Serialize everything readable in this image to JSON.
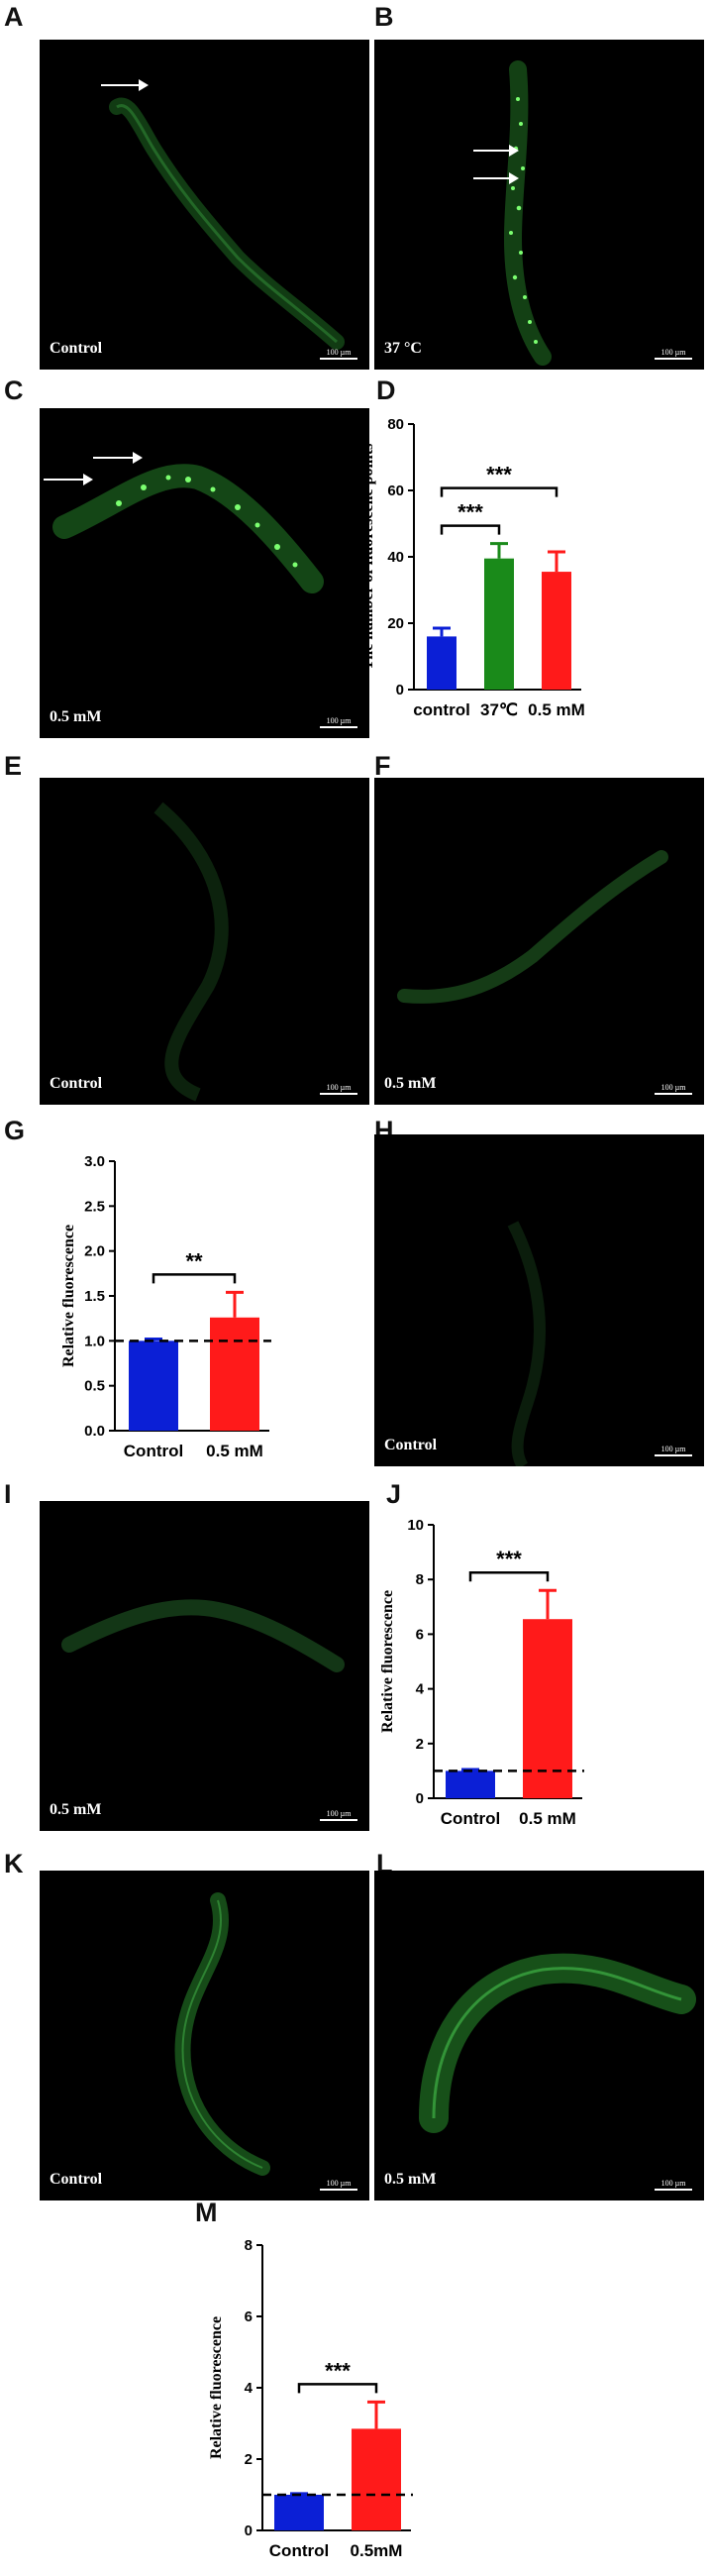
{
  "panels": [
    {
      "id": "A",
      "label": "A",
      "condition": "Control",
      "scale": "100 µm"
    },
    {
      "id": "B",
      "label": "B",
      "condition": "37 °C",
      "scale": "100 µm"
    },
    {
      "id": "C",
      "label": "C",
      "condition": "0.5 mM",
      "scale": "100 µm"
    },
    {
      "id": "E",
      "label": "E",
      "condition": "Control",
      "scale": "100 µm"
    },
    {
      "id": "F",
      "label": "F",
      "condition": "0.5 mM",
      "scale": "100 µm"
    },
    {
      "id": "H",
      "label": "H",
      "condition": "Control",
      "scale": "100 µm"
    },
    {
      "id": "I",
      "label": "I",
      "condition": "0.5 mM",
      "scale": "100 µm"
    },
    {
      "id": "K",
      "label": "K",
      "condition": "Control",
      "scale": "100 µm"
    },
    {
      "id": "L",
      "label": "L",
      "condition": "0.5 mM",
      "scale": "100 µm"
    }
  ],
  "colors": {
    "blue": "#0b1fd6",
    "green": "#1a8a1a",
    "red": "#ff1a1a",
    "fluor": "#39d64a"
  },
  "chart_data": [
    {
      "id": "D",
      "label": "D",
      "type": "bar",
      "ylabel": "The number of fluorescene points",
      "categories": [
        "control",
        "37℃",
        "0.5 mM"
      ],
      "values": [
        16,
        39.5,
        35.5
      ],
      "errors": [
        2.5,
        4.5,
        6
      ],
      "colors": [
        "#0b1fd6",
        "#1a8a1a",
        "#ff1a1a"
      ],
      "ylim": [
        0,
        80
      ],
      "yticks": [
        0,
        20,
        40,
        60,
        80
      ],
      "significance": [
        {
          "from": 0,
          "to": 1,
          "label": "***"
        },
        {
          "from": 0,
          "to": 2,
          "label": "***"
        }
      ],
      "baseline": null
    },
    {
      "id": "G",
      "label": "G",
      "type": "bar",
      "ylabel": "Relative fluorescence",
      "categories": [
        "Control",
        "0.5 mM"
      ],
      "values": [
        1.0,
        1.26
      ],
      "errors": [
        0.02,
        0.28
      ],
      "colors": [
        "#0b1fd6",
        "#ff1a1a"
      ],
      "ylim": [
        0,
        3
      ],
      "yticks": [
        "0.0",
        "0.5",
        "1.0",
        "1.5",
        "2.0",
        "2.5",
        "3.0"
      ],
      "significance": [
        {
          "from": 0,
          "to": 1,
          "label": "**"
        }
      ],
      "baseline": 1
    },
    {
      "id": "J",
      "label": "J",
      "type": "bar",
      "ylabel": "Relative fluorescence",
      "categories": [
        "Control",
        "0.5 mM"
      ],
      "values": [
        1.0,
        6.55
      ],
      "errors": [
        0.05,
        1.05
      ],
      "colors": [
        "#0b1fd6",
        "#ff1a1a"
      ],
      "ylim": [
        0,
        10
      ],
      "yticks": [
        "0",
        "2",
        "4",
        "6",
        "8",
        "10"
      ],
      "significance": [
        {
          "from": 0,
          "to": 1,
          "label": "***"
        }
      ],
      "baseline": 1
    },
    {
      "id": "M",
      "label": "M",
      "type": "bar",
      "ylabel": "Relative fluorescence",
      "categories": [
        "Control",
        "0.5mM"
      ],
      "values": [
        1.0,
        2.85
      ],
      "errors": [
        0.03,
        0.75
      ],
      "colors": [
        "#0b1fd6",
        "#ff1a1a"
      ],
      "ylim": [
        0,
        8
      ],
      "yticks": [
        "0",
        "2",
        "4",
        "6",
        "8"
      ],
      "significance": [
        {
          "from": 0,
          "to": 1,
          "label": "***"
        }
      ],
      "baseline": 1
    }
  ]
}
